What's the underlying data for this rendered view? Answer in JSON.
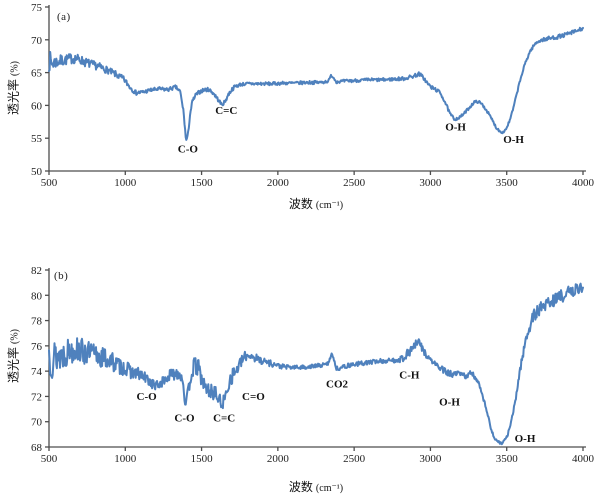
{
  "chart_data": [
    {
      "type": "line",
      "panel_label": "(a)",
      "xlabel": "波数",
      "xunit": "(cm⁻¹)",
      "ylabel": "透光率",
      "yunit": "(%)",
      "xlim": [
        500,
        4000
      ],
      "ylim": [
        50,
        75
      ],
      "x_ticks": [
        500,
        1000,
        1500,
        2000,
        2500,
        3000,
        3500,
        4000
      ],
      "y_ticks": [
        50,
        55,
        60,
        65,
        70,
        75
      ],
      "grid": false,
      "legend": "none",
      "line_color": "#4f81bd",
      "axis_color": "#4d4d4d",
      "annotations": [
        {
          "text": "C-O",
          "x": 1410,
          "y": 52.8
        },
        {
          "text": "C=C",
          "x": 1662,
          "y": 58.7
        },
        {
          "text": "O-H",
          "x": 3165,
          "y": 56.2
        },
        {
          "text": "O-H",
          "x": 3545,
          "y": 54.3
        }
      ],
      "series": [
        {
          "name": "spectrum-a",
          "anchors_format": [
            "wavenumber_cm-1",
            "transmittance_percent",
            "noise_amplitude"
          ],
          "anchors": [
            [
              500,
              67.0,
              1.8
            ],
            [
              515,
              66.4,
              1.3
            ],
            [
              545,
              66.6,
              1.0
            ],
            [
              580,
              66.8,
              0.9
            ],
            [
              620,
              67.0,
              0.8
            ],
            [
              660,
              67.2,
              0.8
            ],
            [
              700,
              67.0,
              0.7
            ],
            [
              745,
              66.5,
              0.7
            ],
            [
              790,
              66.2,
              0.6
            ],
            [
              840,
              65.8,
              0.6
            ],
            [
              890,
              65.3,
              0.5
            ],
            [
              940,
              64.7,
              0.5
            ],
            [
              990,
              64.0,
              0.45
            ],
            [
              1030,
              62.8,
              0.4
            ],
            [
              1070,
              61.9,
              0.35
            ],
            [
              1110,
              62.0,
              0.3
            ],
            [
              1160,
              62.3,
              0.3
            ],
            [
              1220,
              62.5,
              0.3
            ],
            [
              1280,
              62.4,
              0.3
            ],
            [
              1330,
              62.8,
              0.3
            ],
            [
              1360,
              62.1,
              0.3
            ],
            [
              1382,
              59.0,
              0.3
            ],
            [
              1398,
              54.6,
              0.25
            ],
            [
              1410,
              55.3,
              0.25
            ],
            [
              1424,
              58.6,
              0.3
            ],
            [
              1440,
              60.6,
              0.3
            ],
            [
              1462,
              61.6,
              0.3
            ],
            [
              1490,
              62.1,
              0.3
            ],
            [
              1520,
              62.4,
              0.3
            ],
            [
              1550,
              62.4,
              0.3
            ],
            [
              1580,
              61.8,
              0.3
            ],
            [
              1608,
              60.9,
              0.3
            ],
            [
              1632,
              60.1,
              0.3
            ],
            [
              1652,
              60.5,
              0.3
            ],
            [
              1672,
              61.5,
              0.3
            ],
            [
              1694,
              62.3,
              0.3
            ],
            [
              1720,
              62.9,
              0.28
            ],
            [
              1755,
              63.2,
              0.25
            ],
            [
              1800,
              63.3,
              0.25
            ],
            [
              1880,
              63.3,
              0.25
            ],
            [
              1960,
              63.3,
              0.25
            ],
            [
              2040,
              63.4,
              0.25
            ],
            [
              2120,
              63.4,
              0.25
            ],
            [
              2200,
              63.5,
              0.25
            ],
            [
              2280,
              63.5,
              0.25
            ],
            [
              2332,
              63.7,
              0.22
            ],
            [
              2350,
              64.6,
              0.2
            ],
            [
              2366,
              64.2,
              0.2
            ],
            [
              2384,
              63.6,
              0.22
            ],
            [
              2440,
              63.7,
              0.25
            ],
            [
              2520,
              63.8,
              0.25
            ],
            [
              2600,
              63.9,
              0.25
            ],
            [
              2680,
              63.9,
              0.25
            ],
            [
              2760,
              64.0,
              0.25
            ],
            [
              2830,
              64.1,
              0.28
            ],
            [
              2880,
              64.4,
              0.3
            ],
            [
              2925,
              64.8,
              0.3
            ],
            [
              2952,
              64.3,
              0.3
            ],
            [
              2982,
              63.3,
              0.3
            ],
            [
              3008,
              62.7,
              0.3
            ],
            [
              3038,
              62.4,
              0.3
            ],
            [
              3068,
              61.8,
              0.28
            ],
            [
              3098,
              60.4,
              0.25
            ],
            [
              3128,
              58.7,
              0.25
            ],
            [
              3158,
              57.9,
              0.22
            ],
            [
              3188,
              58.1,
              0.22
            ],
            [
              3218,
              58.7,
              0.22
            ],
            [
              3252,
              59.6,
              0.22
            ],
            [
              3288,
              60.5,
              0.22
            ],
            [
              3312,
              60.6,
              0.22
            ],
            [
              3342,
              60.1,
              0.22
            ],
            [
              3372,
              59.1,
              0.22
            ],
            [
              3402,
              57.9,
              0.22
            ],
            [
              3432,
              56.6,
              0.2
            ],
            [
              3458,
              56.0,
              0.18
            ],
            [
              3478,
              55.9,
              0.18
            ],
            [
              3498,
              56.5,
              0.18
            ],
            [
              3520,
              57.7,
              0.2
            ],
            [
              3544,
              59.6,
              0.2
            ],
            [
              3568,
              62.0,
              0.22
            ],
            [
              3596,
              64.5,
              0.22
            ],
            [
              3624,
              66.6,
              0.22
            ],
            [
              3652,
              68.2,
              0.22
            ],
            [
              3680,
              69.2,
              0.25
            ],
            [
              3708,
              69.8,
              0.25
            ],
            [
              3736,
              70.0,
              0.28
            ],
            [
              3776,
              70.2,
              0.3
            ],
            [
              3826,
              70.4,
              0.3
            ],
            [
              3876,
              70.7,
              0.3
            ],
            [
              3926,
              71.1,
              0.3
            ],
            [
              3966,
              71.4,
              0.3
            ],
            [
              4000,
              71.8,
              0.3
            ]
          ]
        }
      ]
    },
    {
      "type": "line",
      "panel_label": "(b)",
      "xlabel": "波数",
      "xunit": "(cm⁻¹)",
      "ylabel": "透光率",
      "yunit": "(%)",
      "xlim": [
        500,
        4000
      ],
      "ylim": [
        68,
        82
      ],
      "x_ticks": [
        500,
        1000,
        1500,
        2000,
        2500,
        3000,
        3500,
        4000
      ],
      "y_ticks": [
        68,
        70,
        72,
        74,
        76,
        78,
        80,
        82
      ],
      "grid": false,
      "legend": "none",
      "line_color": "#4f81bd",
      "axis_color": "#4d4d4d",
      "annotations": [
        {
          "text": "C-O",
          "x": 1140,
          "y": 71.7
        },
        {
          "text": "C-O",
          "x": 1388,
          "y": 70.0
        },
        {
          "text": "C=C",
          "x": 1648,
          "y": 70.0
        },
        {
          "text": "C=O",
          "x": 1840,
          "y": 71.7
        },
        {
          "text": "CO2",
          "x": 2388,
          "y": 72.7
        },
        {
          "text": "C-H",
          "x": 2862,
          "y": 73.4
        },
        {
          "text": "O-H",
          "x": 3125,
          "y": 71.3
        },
        {
          "text": "O-H",
          "x": 3620,
          "y": 68.4
        }
      ],
      "series": [
        {
          "name": "spectrum-b",
          "anchors_format": [
            "wavenumber_cm-1",
            "transmittance_percent",
            "noise_amplitude"
          ],
          "anchors": [
            [
              500,
              75.4,
              1.8
            ],
            [
              525,
              75.0,
              1.6
            ],
            [
              555,
              75.2,
              1.4
            ],
            [
              590,
              75.3,
              1.2
            ],
            [
              630,
              75.6,
              1.1
            ],
            [
              670,
              75.8,
              1.05
            ],
            [
              710,
              75.6,
              1.0
            ],
            [
              750,
              75.4,
              1.0
            ],
            [
              795,
              75.3,
              0.95
            ],
            [
              845,
              75.1,
              0.9
            ],
            [
              895,
              74.9,
              0.8
            ],
            [
              945,
              74.5,
              0.7
            ],
            [
              1000,
              74.2,
              0.6
            ],
            [
              1050,
              73.9,
              0.55
            ],
            [
              1100,
              73.7,
              0.5
            ],
            [
              1150,
              73.3,
              0.45
            ],
            [
              1200,
              72.8,
              0.4
            ],
            [
              1250,
              73.2,
              0.4
            ],
            [
              1300,
              73.7,
              0.5
            ],
            [
              1348,
              73.9,
              0.5
            ],
            [
              1376,
              73.4,
              0.45
            ],
            [
              1396,
              71.1,
              0.4
            ],
            [
              1410,
              72.2,
              0.5
            ],
            [
              1430,
              73.7,
              0.6
            ],
            [
              1452,
              74.4,
              0.7
            ],
            [
              1478,
              74.3,
              0.7
            ],
            [
              1502,
              73.3,
              0.65
            ],
            [
              1528,
              72.6,
              0.6
            ],
            [
              1558,
              72.4,
              0.6
            ],
            [
              1588,
              72.3,
              0.6
            ],
            [
              1614,
              71.7,
              0.55
            ],
            [
              1636,
              71.4,
              0.5
            ],
            [
              1658,
              72.0,
              0.55
            ],
            [
              1680,
              73.2,
              0.65
            ],
            [
              1704,
              73.7,
              0.6
            ],
            [
              1730,
              74.1,
              0.5
            ],
            [
              1758,
              74.7,
              0.45
            ],
            [
              1788,
              75.2,
              0.4
            ],
            [
              1818,
              75.3,
              0.4
            ],
            [
              1858,
              75.0,
              0.35
            ],
            [
              1908,
              74.8,
              0.3
            ],
            [
              1958,
              74.6,
              0.25
            ],
            [
              2010,
              74.4,
              0.2
            ],
            [
              2080,
              74.3,
              0.16
            ],
            [
              2160,
              74.3,
              0.16
            ],
            [
              2240,
              74.4,
              0.16
            ],
            [
              2308,
              74.5,
              0.16
            ],
            [
              2336,
              74.7,
              0.15
            ],
            [
              2352,
              75.5,
              0.15
            ],
            [
              2366,
              75.0,
              0.15
            ],
            [
              2382,
              74.2,
              0.16
            ],
            [
              2420,
              74.3,
              0.18
            ],
            [
              2480,
              74.5,
              0.18
            ],
            [
              2540,
              74.6,
              0.18
            ],
            [
              2600,
              74.7,
              0.18
            ],
            [
              2660,
              74.8,
              0.18
            ],
            [
              2720,
              74.8,
              0.2
            ],
            [
              2780,
              74.9,
              0.22
            ],
            [
              2818,
              75.0,
              0.28
            ],
            [
              2852,
              75.4,
              0.35
            ],
            [
              2888,
              75.9,
              0.38
            ],
            [
              2922,
              76.3,
              0.35
            ],
            [
              2952,
              75.7,
              0.3
            ],
            [
              2988,
              75.0,
              0.28
            ],
            [
              3028,
              74.6,
              0.26
            ],
            [
              3068,
              74.2,
              0.25
            ],
            [
              3108,
              73.9,
              0.25
            ],
            [
              3148,
              73.7,
              0.25
            ],
            [
              3188,
              73.8,
              0.25
            ],
            [
              3228,
              73.6,
              0.25
            ],
            [
              3262,
              73.8,
              0.25
            ],
            [
              3298,
              73.5,
              0.24
            ],
            [
              3328,
              72.7,
              0.2
            ],
            [
              3358,
              71.4,
              0.18
            ],
            [
              3388,
              69.9,
              0.15
            ],
            [
              3414,
              68.8,
              0.12
            ],
            [
              3440,
              68.4,
              0.1
            ],
            [
              3468,
              68.3,
              0.1
            ],
            [
              3494,
              68.6,
              0.12
            ],
            [
              3518,
              69.4,
              0.15
            ],
            [
              3544,
              70.8,
              0.2
            ],
            [
              3570,
              72.7,
              0.25
            ],
            [
              3598,
              74.9,
              0.3
            ],
            [
              3626,
              76.5,
              0.4
            ],
            [
              3654,
              77.7,
              0.5
            ],
            [
              3684,
              78.5,
              0.5
            ],
            [
              3714,
              78.9,
              0.52
            ],
            [
              3754,
              79.3,
              0.52
            ],
            [
              3804,
              79.6,
              0.52
            ],
            [
              3854,
              79.9,
              0.5
            ],
            [
              3904,
              80.2,
              0.5
            ],
            [
              3946,
              80.4,
              0.48
            ],
            [
              4000,
              80.7,
              0.45
            ]
          ]
        }
      ]
    }
  ]
}
